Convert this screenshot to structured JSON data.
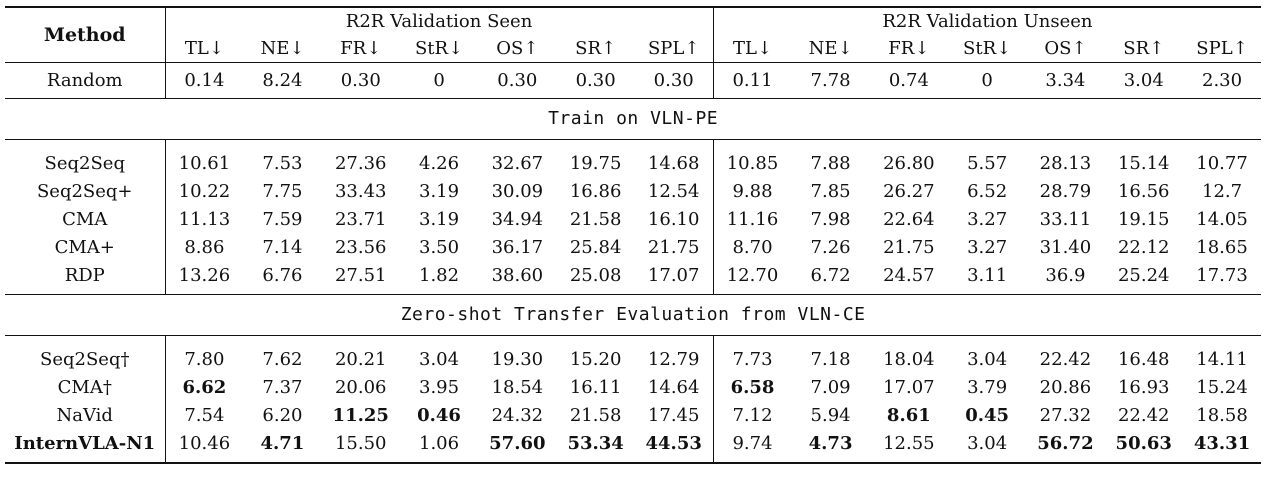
{
  "header": {
    "method": "Method",
    "group_seen": "R2R Validation Seen",
    "group_unseen": "R2R Validation Unseen",
    "metrics": [
      "TL↓",
      "NE↓",
      "FR↓",
      "StR↓",
      "OS↑",
      "SR↑",
      "SPL↑"
    ]
  },
  "random": {
    "name": "Random",
    "seen": [
      "0.14",
      "8.24",
      "0.30",
      "0",
      "0.30",
      "0.30",
      "0.30"
    ],
    "unseen": [
      "0.11",
      "7.78",
      "0.74",
      "0",
      "3.34",
      "3.04",
      "2.30"
    ]
  },
  "section1": {
    "title": "Train on VLN-PE",
    "rows": [
      {
        "name": "Seq2Seq",
        "seen": [
          "10.61",
          "7.53",
          "27.36",
          "4.26",
          "32.67",
          "19.75",
          "14.68"
        ],
        "unseen": [
          "10.85",
          "7.88",
          "26.80",
          "5.57",
          "28.13",
          "15.14",
          "10.77"
        ]
      },
      {
        "name": "Seq2Seq+",
        "seen": [
          "10.22",
          "7.75",
          "33.43",
          "3.19",
          "30.09",
          "16.86",
          "12.54"
        ],
        "unseen": [
          "9.88",
          "7.85",
          "26.27",
          "6.52",
          "28.79",
          "16.56",
          "12.7"
        ]
      },
      {
        "name": "CMA",
        "seen": [
          "11.13",
          "7.59",
          "23.71",
          "3.19",
          "34.94",
          "21.58",
          "16.10"
        ],
        "unseen": [
          "11.16",
          "7.98",
          "22.64",
          "3.27",
          "33.11",
          "19.15",
          "14.05"
        ]
      },
      {
        "name": "CMA+",
        "seen": [
          "8.86",
          "7.14",
          "23.56",
          "3.50",
          "36.17",
          "25.84",
          "21.75"
        ],
        "unseen": [
          "8.70",
          "7.26",
          "21.75",
          "3.27",
          "31.40",
          "22.12",
          "18.65"
        ]
      },
      {
        "name": "RDP",
        "seen": [
          "13.26",
          "6.76",
          "27.51",
          "1.82",
          "38.60",
          "25.08",
          "17.07"
        ],
        "unseen": [
          "12.70",
          "6.72",
          "24.57",
          "3.11",
          "36.9",
          "25.24",
          "17.73"
        ]
      }
    ]
  },
  "section2": {
    "title": "Zero-shot Transfer Evaluation from VLN-CE",
    "rows": [
      {
        "name": "Seq2Seq†",
        "seen": [
          "7.80",
          "7.62",
          "20.21",
          "3.04",
          "19.30",
          "15.20",
          "12.79"
        ],
        "unseen": [
          "7.73",
          "7.18",
          "18.04",
          "3.04",
          "22.42",
          "16.48",
          "14.11"
        ]
      },
      {
        "name": "CMA†",
        "seen": [
          "6.62",
          "7.37",
          "20.06",
          "3.95",
          "18.54",
          "16.11",
          "14.64"
        ],
        "unseen": [
          "6.58",
          "7.09",
          "17.07",
          "3.79",
          "20.86",
          "16.93",
          "15.24"
        ]
      },
      {
        "name": "NaVid",
        "seen": [
          "7.54",
          "6.20",
          "11.25",
          "0.46",
          "24.32",
          "21.58",
          "17.45"
        ],
        "unseen": [
          "7.12",
          "5.94",
          "8.61",
          "0.45",
          "27.32",
          "22.42",
          "18.58"
        ]
      },
      {
        "name": "InternVLA-N1",
        "seen": [
          "10.46",
          "4.71",
          "15.50",
          "1.06",
          "57.60",
          "53.34",
          "44.53"
        ],
        "unseen": [
          "9.74",
          "4.73",
          "12.55",
          "3.04",
          "56.72",
          "50.63",
          "43.31"
        ]
      }
    ]
  }
}
